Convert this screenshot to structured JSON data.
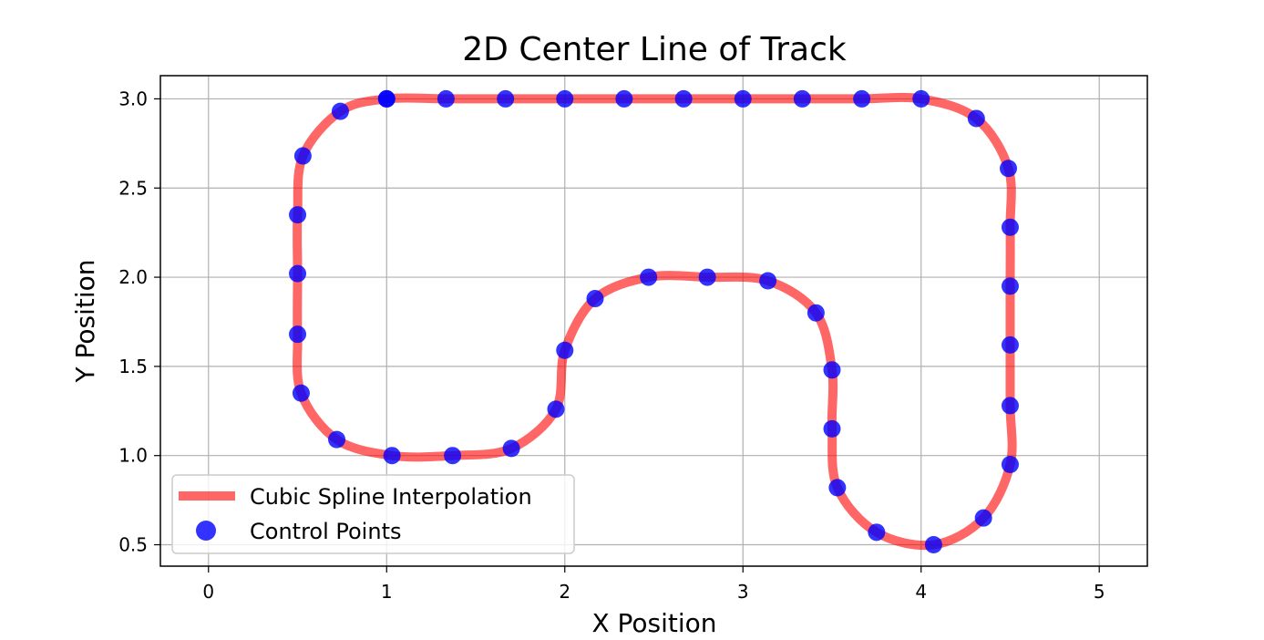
{
  "chart_data": {
    "type": "line",
    "title": "2D Center Line of Track",
    "xlabel": "X Position",
    "ylabel": "Y Position",
    "xlim": [
      -0.27,
      5.27
    ],
    "ylim": [
      0.38,
      3.13
    ],
    "xticks": [
      0,
      1,
      2,
      3,
      4,
      5
    ],
    "yticks": [
      0.5,
      1.0,
      1.5,
      2.0,
      2.5,
      3.0
    ],
    "xtick_labels": [
      "0",
      "1",
      "2",
      "3",
      "4",
      "5"
    ],
    "ytick_labels": [
      "0.5",
      "1.0",
      "1.5",
      "2.0",
      "2.5",
      "3.0"
    ],
    "grid": true,
    "legend_position": "lower-left",
    "series": [
      {
        "name": "Cubic Spline Interpolation",
        "kind": "line",
        "color": "#ff0000",
        "alpha": 0.6
      },
      {
        "name": "Control Points",
        "kind": "scatter",
        "color": "#0000ff",
        "alpha": 0.8,
        "points": [
          [
            1.0,
            3.0
          ],
          [
            1.333,
            3.0
          ],
          [
            1.667,
            3.0
          ],
          [
            2.0,
            3.0
          ],
          [
            2.333,
            3.0
          ],
          [
            2.667,
            3.0
          ],
          [
            3.0,
            3.0
          ],
          [
            3.333,
            3.0
          ],
          [
            3.667,
            3.0
          ],
          [
            4.0,
            3.0
          ],
          [
            4.31,
            2.89
          ],
          [
            4.49,
            2.61
          ],
          [
            4.5,
            2.28
          ],
          [
            4.5,
            1.95
          ],
          [
            4.5,
            1.62
          ],
          [
            4.5,
            1.28
          ],
          [
            4.5,
            0.95
          ],
          [
            4.35,
            0.65
          ],
          [
            4.07,
            0.5
          ],
          [
            3.75,
            0.57
          ],
          [
            3.53,
            0.82
          ],
          [
            3.5,
            1.15
          ],
          [
            3.5,
            1.48
          ],
          [
            3.41,
            1.8
          ],
          [
            3.14,
            1.98
          ],
          [
            2.8,
            2.0
          ],
          [
            2.47,
            2.0
          ],
          [
            2.17,
            1.88
          ],
          [
            2.0,
            1.59
          ],
          [
            1.95,
            1.26
          ],
          [
            1.7,
            1.04
          ],
          [
            1.37,
            1.0
          ],
          [
            1.03,
            1.0
          ],
          [
            0.72,
            1.09
          ],
          [
            0.52,
            1.35
          ],
          [
            0.5,
            1.68
          ],
          [
            0.5,
            2.02
          ],
          [
            0.5,
            2.35
          ],
          [
            0.53,
            2.68
          ],
          [
            0.74,
            2.93
          ],
          [
            1.0,
            3.0
          ]
        ]
      }
    ]
  }
}
